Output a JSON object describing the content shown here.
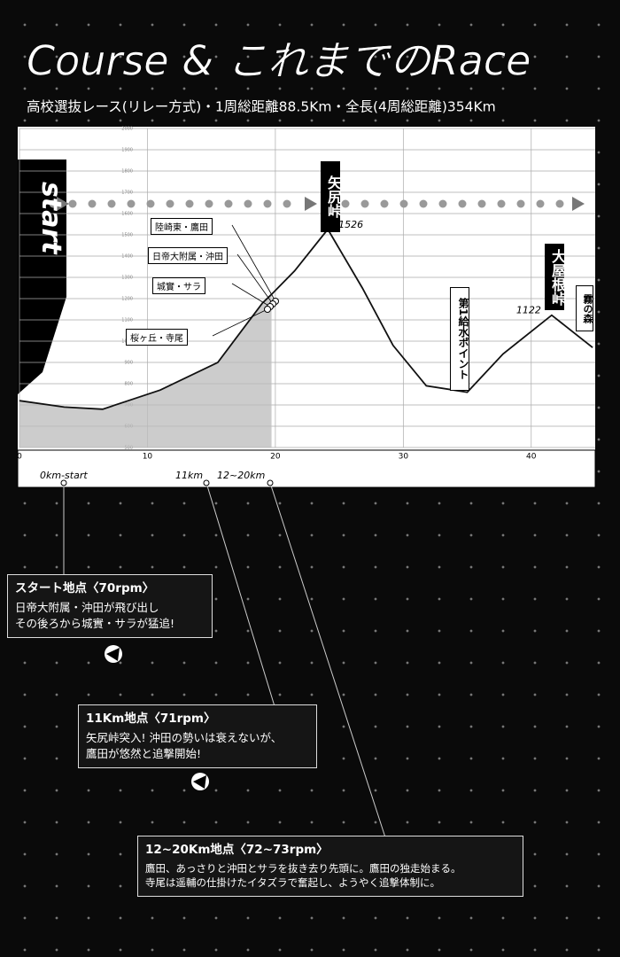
{
  "chart_data": {
    "type": "line",
    "title": "Course & これまでのRace",
    "subtitle": "高校選抜レース(リレー方式)・1周総距離88.5Km・全長(4周総距離)354Km",
    "x": [
      0,
      3.5,
      6.5,
      8.5,
      11,
      15.5,
      19,
      19.7,
      21.5,
      24.1,
      26.8,
      29.2,
      31.8,
      35,
      37.8,
      41.6,
      44.8
    ],
    "values": [
      720,
      690,
      680,
      720,
      770,
      900,
      1180,
      1220,
      1330,
      1526,
      1250,
      980,
      790,
      760,
      940,
      1122,
      970
    ],
    "value_labels": [
      null,
      null,
      null,
      null,
      null,
      null,
      null,
      null,
      null,
      "1526",
      null,
      null,
      null,
      null,
      null,
      "1122",
      null
    ],
    "color": "#111111",
    "xlim": [
      0,
      45
    ],
    "xticks": [
      0,
      10,
      20,
      30,
      40
    ],
    "ylim": [
      500,
      2000
    ],
    "yticks": [
      500,
      600,
      700,
      800,
      900,
      1000,
      1100,
      1200,
      1300,
      1400,
      1500,
      1600,
      1700,
      1800,
      1900,
      2000
    ],
    "grid": true
  },
  "course": {
    "start": "start",
    "passes": [
      "矢尻峠",
      "大屋根峠"
    ],
    "forest": "霧の森",
    "water": "第1給水ポイント",
    "riders": [
      "陸崎東・鷹田",
      "日帝大附属・沖田",
      "城實・サラ",
      "桜ヶ丘・寺尾"
    ],
    "markers": [
      "0km-start",
      "11km",
      "12~20km"
    ]
  },
  "notes": [
    {
      "heading": "スタート地点〈70rpm〉",
      "lines": [
        "日帝大附属・沖田が飛び出し",
        "その後ろから城實・サラが猛追!"
      ]
    },
    {
      "heading": "11Km地点〈71rpm〉",
      "lines": [
        "矢尻峠突入! 沖田の勢いは衰えないが、",
        "鷹田が悠然と追撃開始!"
      ]
    },
    {
      "heading": "12~20Km地点〈72~73rpm〉",
      "lines": [
        "鷹田、あっさりと沖田とサラを抜き去り先頭に。鷹田の独走始まる。",
        "寺尾は遥輔の仕掛けたイタズラで奮起し、ようやく追撃体制に。"
      ]
    }
  ]
}
